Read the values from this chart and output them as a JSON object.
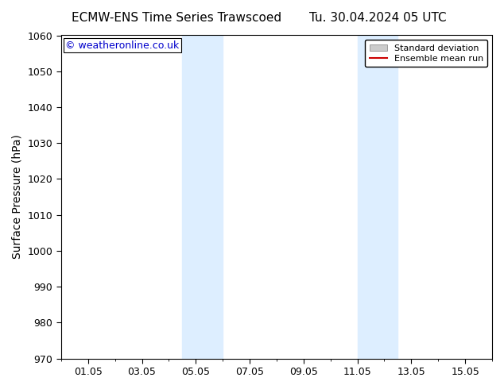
{
  "title_left": "ECMW-ENS Time Series Trawscoed",
  "title_right": "Tu. 30.04.2024 05 UTC",
  "ylabel": "Surface Pressure (hPa)",
  "xlabel": "",
  "ylim": [
    970,
    1060
  ],
  "yticks": [
    970,
    980,
    990,
    1000,
    1010,
    1020,
    1030,
    1040,
    1050,
    1060
  ],
  "xtick_labels": [
    "01.05",
    "03.05",
    "05.05",
    "07.05",
    "09.05",
    "11.05",
    "13.05",
    "15.05"
  ],
  "xtick_positions": [
    1,
    3,
    5,
    7,
    9,
    11,
    13,
    15
  ],
  "xlim": [
    0,
    16
  ],
  "shaded_bands": [
    {
      "x_start": 4.5,
      "x_end": 6.0
    },
    {
      "x_start": 11.0,
      "x_end": 12.5
    }
  ],
  "shade_color": "#ddeeff",
  "background_color": "#ffffff",
  "watermark_text": "© weatheronline.co.uk",
  "watermark_color": "#0000cc",
  "legend_std_label": "Standard deviation",
  "legend_mean_label": "Ensemble mean run",
  "legend_std_color": "#cccccc",
  "legend_mean_color": "#cc0000",
  "title_fontsize": 11,
  "axis_label_fontsize": 10,
  "tick_fontsize": 9,
  "watermark_fontsize": 9,
  "legend_fontsize": 8
}
